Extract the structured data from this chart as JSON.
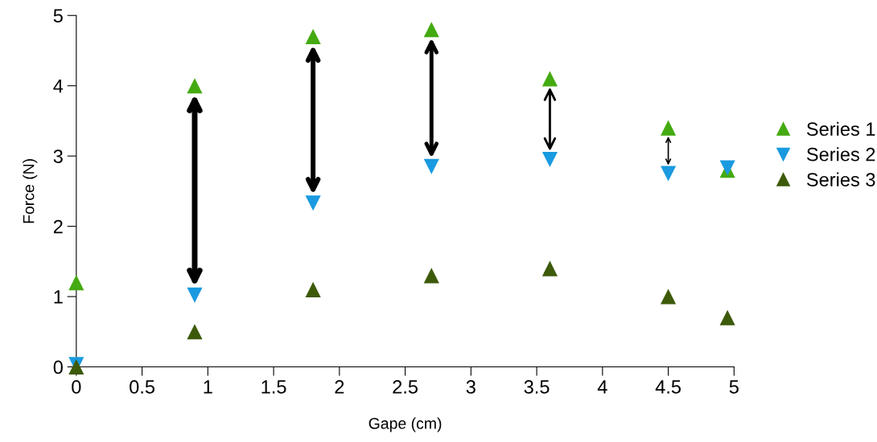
{
  "chart_data": {
    "type": "scatter",
    "xlabel": "Gape (cm)",
    "ylabel": "Force (N)",
    "x": [
      0,
      0.9,
      1.8,
      2.7,
      3.6,
      4.5,
      4.95
    ],
    "series": [
      {
        "name": "Series 1",
        "color": "#44aa11",
        "marker": "triangle",
        "values": [
          1.2,
          4.0,
          4.7,
          4.8,
          4.1,
          3.4,
          2.8
        ]
      },
      {
        "name": "Series 2",
        "color": "#1a9ae0",
        "marker": "triangle_down",
        "values": [
          0.03,
          1.02,
          2.33,
          2.85,
          2.95,
          2.75,
          2.83
        ]
      },
      {
        "name": "Series 3",
        "color": "#3d5a0a",
        "marker": "triangle",
        "values": [
          0,
          0.5,
          1.1,
          1.3,
          1.4,
          1.0,
          0.7
        ]
      }
    ],
    "xlim": [
      0,
      5
    ],
    "ylim": [
      0,
      5
    ],
    "xticks": [
      0,
      0.5,
      1,
      1.5,
      2,
      2.5,
      3,
      3.5,
      4,
      4.5,
      5
    ],
    "yticks": [
      0,
      1,
      2,
      3,
      4,
      5
    ],
    "grid": false,
    "legend": "right"
  }
}
